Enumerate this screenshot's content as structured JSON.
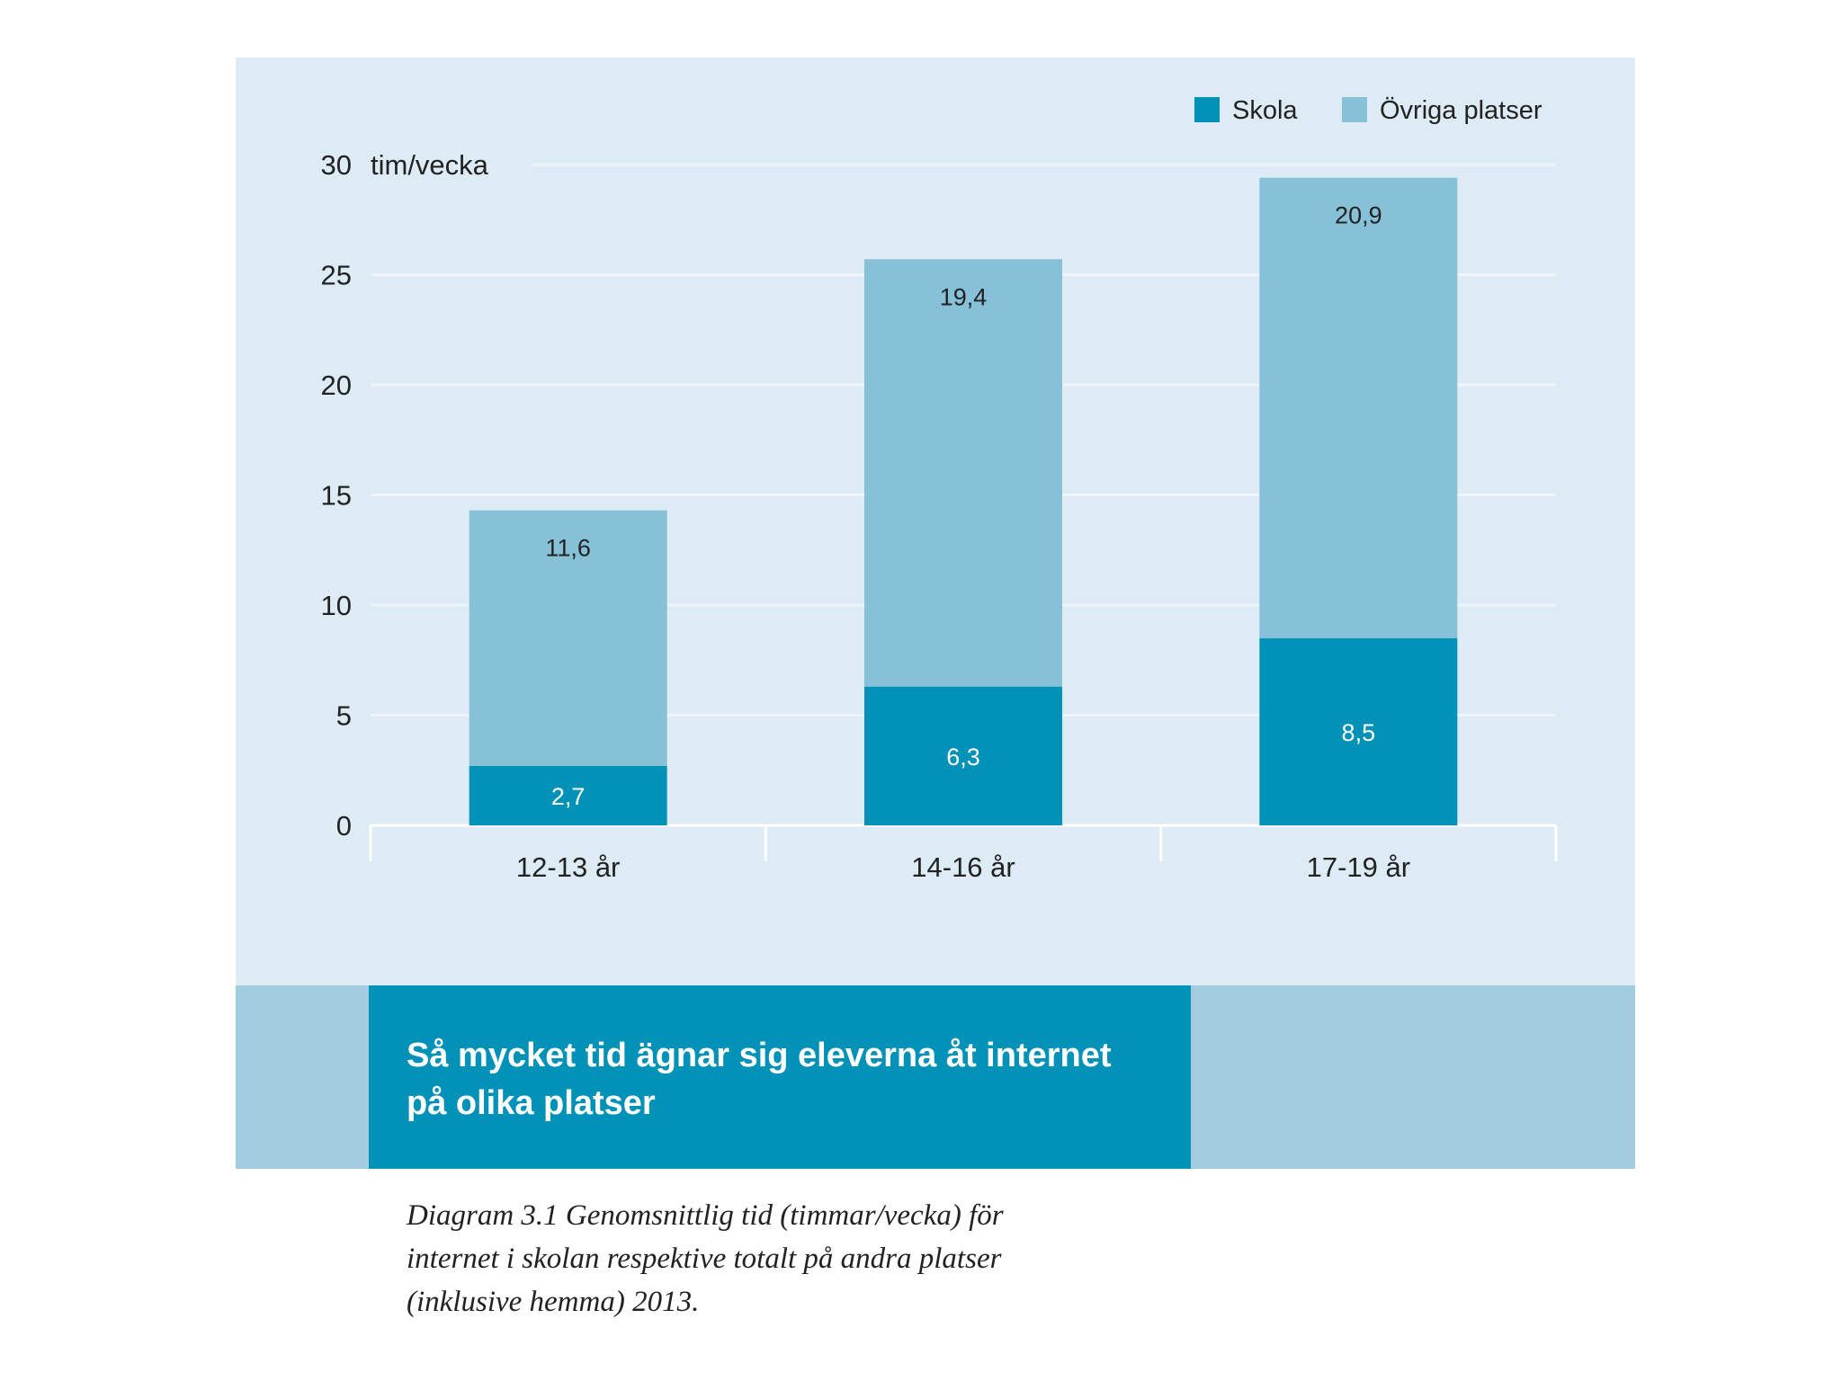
{
  "chart_data": {
    "type": "bar",
    "stacked": true,
    "categories": [
      "12-13 år",
      "14-16 år",
      "17-19 år"
    ],
    "series": [
      {
        "name": "Skola",
        "values": [
          2.7,
          6.3,
          8.5
        ],
        "labels": [
          "2,7",
          "6,3",
          "8,5"
        ],
        "color": "#0292b7"
      },
      {
        "name": "Övriga platser",
        "values": [
          11.6,
          19.4,
          20.9
        ],
        "labels": [
          "11,6",
          "19,4",
          "20,9"
        ],
        "color": "#86c1d8"
      }
    ],
    "ylabel": "tim/vecka",
    "ylim": [
      0,
      30
    ],
    "yticks": [
      0,
      5,
      10,
      15,
      20,
      25,
      30
    ],
    "grid": true,
    "legend_position": "top-right"
  },
  "colors": {
    "panel_background": "#dcebf4",
    "gridline": "#eef5fa",
    "title_band": "#a2cde0",
    "title_box": "#0292b7"
  },
  "title": "Så mycket tid ägnar sig eleverna åt internet på olika platser",
  "caption": "Diagram 3.1 Genomsnittlig tid (timmar/vecka) för internet i skolan respektive totalt på andra platser (inklusive hemma) 2013."
}
